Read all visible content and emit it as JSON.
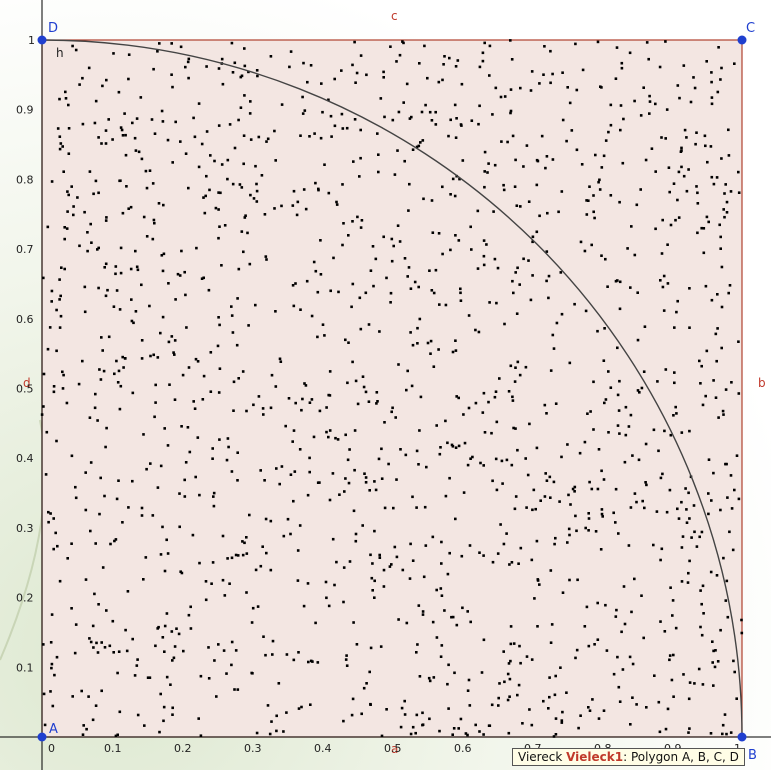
{
  "axes": {
    "x_ticks": [
      "0",
      "0.1",
      "0.2",
      "0.3",
      "0.4",
      "0.5",
      "0.6",
      "0.7",
      "0.8",
      "0.9",
      "1"
    ],
    "y_ticks": [
      "0.1",
      "0.2",
      "0.3",
      "0.4",
      "0.5",
      "0.6",
      "0.7",
      "0.8",
      "0.9",
      "1"
    ]
  },
  "polygon": {
    "points": [
      {
        "label": "A",
        "x": 0,
        "y": 0
      },
      {
        "label": "B",
        "x": 1,
        "y": 0
      },
      {
        "label": "C",
        "x": 1,
        "y": 1
      },
      {
        "label": "D",
        "x": 0,
        "y": 1
      }
    ],
    "segments": [
      "a",
      "b",
      "c",
      "d"
    ],
    "fill_color": "#f3e6e2",
    "edge_color": "#b0412e"
  },
  "curve": {
    "label": "h",
    "type": "quarter-circle",
    "radius": 1,
    "color": "#444444"
  },
  "scatter": {
    "point_count": 1600,
    "color": "#000000"
  },
  "tooltip": {
    "type": "Viereck",
    "name": "Vieleck1",
    "description": ": Polygon A, B, C, D"
  },
  "colors": {
    "point": "#1f3fcf",
    "label": "#c0392b"
  }
}
